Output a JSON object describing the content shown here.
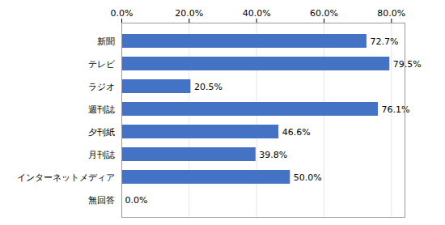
{
  "chart_data": {
    "type": "bar",
    "orientation": "horizontal",
    "categories": [
      "新聞",
      "テレビ",
      "ラジオ",
      "週刊誌",
      "夕刊紙",
      "月刊誌",
      "インターネットメディア",
      "無回答"
    ],
    "values": [
      72.7,
      79.5,
      20.5,
      76.1,
      46.6,
      39.8,
      50.0,
      0.0
    ],
    "value_labels": [
      "72.7%",
      "79.5%",
      "20.5%",
      "76.1%",
      "46.6%",
      "39.8%",
      "50.0%",
      "0.0%"
    ],
    "color": "#4472C4",
    "xlim": [
      0,
      84
    ],
    "xticks": [
      {
        "value": 0,
        "label": "0.0%"
      },
      {
        "value": 20,
        "label": "20.0%"
      },
      {
        "value": 40,
        "label": "40.0%"
      },
      {
        "value": 60,
        "label": "60.0%"
      },
      {
        "value": 80,
        "label": "80.0%"
      }
    ],
    "grid": true,
    "data_labels": true
  }
}
